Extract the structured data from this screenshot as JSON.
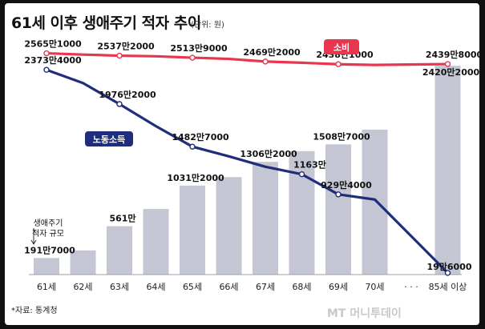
{
  "header": {
    "title": "61세 이후 생애주기 적자 추이",
    "unit": "(단위: 원)"
  },
  "footer": {
    "source": "*자료: 통계청",
    "watermark": "MT 머니투데이"
  },
  "colors": {
    "consumption": "#e8364f",
    "labor": "#1f2d7a",
    "deficit_bar": "#c4c7d3",
    "consumption_tag": "#e8364f",
    "labor_tag": "#1f2d7a"
  },
  "chart_data": {
    "type": "bar+line",
    "title": "61세 이후 생애주기 적자 추이",
    "unit_label": "(단위: 원)",
    "categories": [
      "61세",
      "62세",
      "63세",
      "64세",
      "65세",
      "66세",
      "67세",
      "68세",
      "69세",
      "70세",
      "· · ·",
      "85세 이상"
    ],
    "deficit_annotation": "생애주기 적자 규모",
    "series": [
      {
        "name": "생애주기 적자 규모",
        "kind": "bar",
        "values": [
          1917000,
          2800000,
          5610000,
          7600000,
          10312000,
          11300000,
          13062000,
          14300000,
          15087000,
          16800000,
          null,
          24202000
        ],
        "labels": [
          "191만7000",
          null,
          "561만",
          null,
          "1031만2000",
          null,
          "1306만2000",
          null,
          "1508만7000",
          null,
          null,
          "2420만2000"
        ]
      },
      {
        "name": "소비",
        "kind": "line",
        "values": [
          25651000,
          25500000,
          25372000,
          25300000,
          25139000,
          25000000,
          24692000,
          24550000,
          24381000,
          24300000,
          null,
          24398000
        ],
        "labels": [
          "2565만1000",
          null,
          "2537만2000",
          null,
          "2513만9000",
          null,
          "2469만2000",
          null,
          "2438만1000",
          null,
          null,
          "2439만8000"
        ]
      },
      {
        "name": "노동소득",
        "kind": "line",
        "values": [
          23734000,
          22200000,
          19762000,
          17200000,
          14827000,
          13700000,
          12500000,
          11630000,
          9294000,
          8700000,
          null,
          196000
        ],
        "labels": [
          "2373만4000",
          null,
          "1976만2000",
          null,
          "1482만7000",
          null,
          null,
          "1163만",
          "929만4000",
          null,
          null,
          "19만6000"
        ]
      }
    ],
    "ylim": [
      0,
      27000000
    ],
    "grid": false,
    "legend": "inline tags near lines"
  }
}
